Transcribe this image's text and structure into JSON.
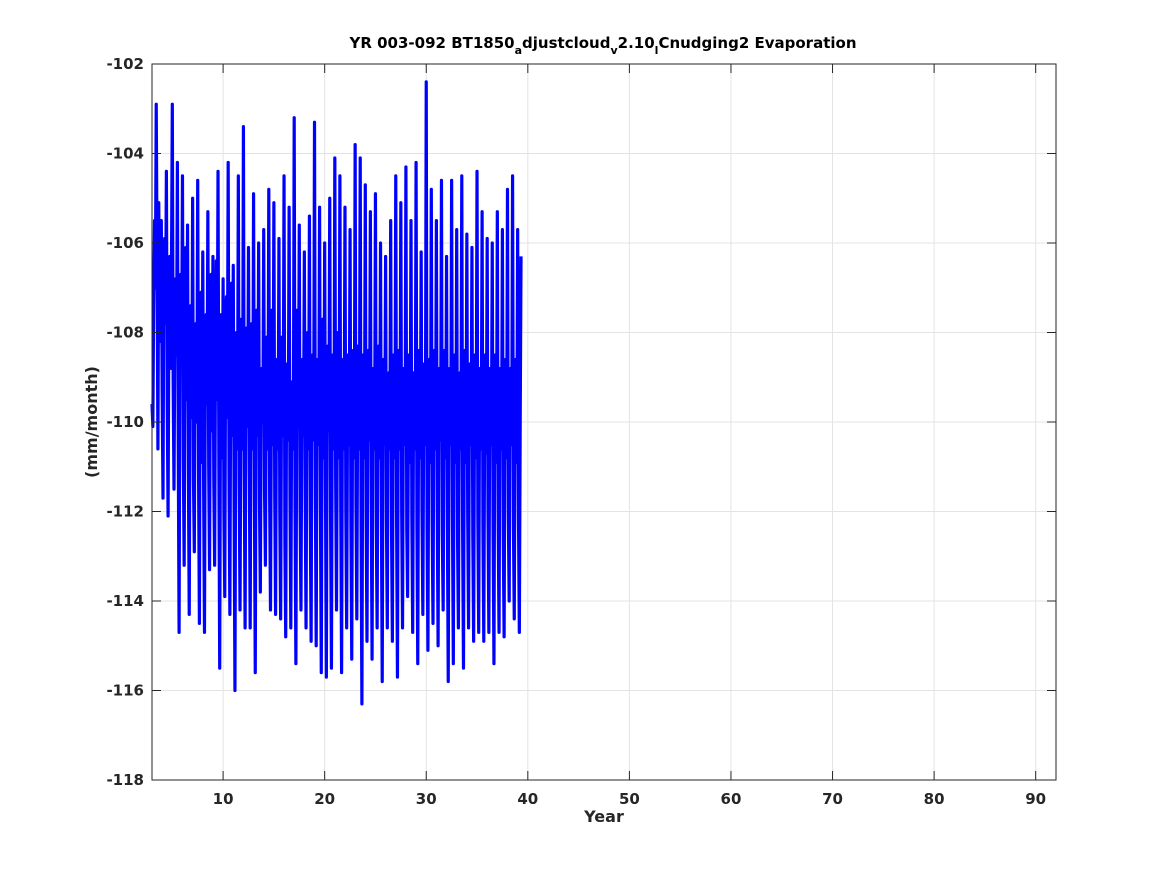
{
  "chart_data": {
    "type": "line",
    "title": {
      "part1": "YR 003-092 BT1850",
      "sub1": "a",
      "part2": "djustcloud",
      "sub2": "v",
      "part3": "2.10",
      "sub3": "l",
      "part4": "Cnudging2 Evaporation"
    },
    "xlabel": "Year",
    "ylabel": "(mm/month)",
    "xlim": [
      3,
      92
    ],
    "ylim": [
      -118,
      -102
    ],
    "xticks": [
      10,
      20,
      30,
      40,
      50,
      60,
      70,
      80,
      90
    ],
    "yticks": [
      -118,
      -116,
      -114,
      -112,
      -110,
      -108,
      -106,
      -104,
      -102
    ],
    "grid": true,
    "line_color": "#0000ff",
    "x_start": 3.0,
    "x_step": 0.08333,
    "series": [
      {
        "values": [
          -109.6,
          -110.1,
          -107.3,
          -105.5,
          -107.0,
          -102.9,
          -106.5,
          -110.6,
          -105.1,
          -108.2,
          -107.0,
          -105.5,
          -109.3,
          -111.7,
          -106.5,
          -105.9,
          -107.8,
          -104.4,
          -109.6,
          -112.1,
          -107.4,
          -106.3,
          -108.8,
          -106.6,
          -102.9,
          -109.1,
          -111.5,
          -107.9,
          -106.8,
          -108.5,
          -104.2,
          -110.4,
          -114.7,
          -108.0,
          -106.7,
          -108.7,
          -104.5,
          -110.8,
          -113.2,
          -107.9,
          -106.1,
          -109.5,
          -105.6,
          -111.1,
          -114.3,
          -108.5,
          -107.4,
          -109.9,
          -105.0,
          -111.3,
          -112.9,
          -108.0,
          -107.8,
          -110.0,
          -104.6,
          -111.1,
          -114.5,
          -107.8,
          -107.1,
          -110.9,
          -106.2,
          -111.4,
          -114.7,
          -108.7,
          -107.6,
          -109.6,
          -105.3,
          -111.0,
          -113.3,
          -108.2,
          -106.7,
          -110.2,
          -106.3,
          -111.3,
          -113.2,
          -108.5,
          -106.4,
          -109.5,
          -104.4,
          -111.0,
          -115.5,
          -108.7,
          -107.6,
          -110.8,
          -106.8,
          -112.1,
          -113.9,
          -107.9,
          -107.2,
          -109.9,
          -104.2,
          -111.2,
          -114.3,
          -108.7,
          -106.9,
          -110.3,
          -106.5,
          -111.7,
          -116.0,
          -109.1,
          -108.0,
          -110.6,
          -104.5,
          -111.3,
          -114.2,
          -109.6,
          -107.7,
          -110.6,
          -103.4,
          -111.1,
          -114.6,
          -108.9,
          -107.9,
          -110.1,
          -106.1,
          -111.1,
          -114.6,
          -108.9,
          -107.8,
          -110.6,
          -104.9,
          -111.7,
          -115.6,
          -109.1,
          -107.5,
          -110.3,
          -106.0,
          -111.8,
          -113.8,
          -109.5,
          -108.8,
          -110.0,
          -105.7,
          -111.6,
          -113.2,
          -109.2,
          -108.1,
          -110.6,
          -104.8,
          -111.7,
          -114.2,
          -109.7,
          -107.5,
          -110.5,
          -105.1,
          -111.6,
          -114.3,
          -109.3,
          -108.6,
          -110.6,
          -105.9,
          -112.1,
          -114.4,
          -109.3,
          -108.1,
          -110.3,
          -104.5,
          -112.7,
          -114.8,
          -109.2,
          -108.7,
          -110.4,
          -105.2,
          -111.6,
          -114.6,
          -109.6,
          -109.1,
          -110.6,
          -103.2,
          -111.9,
          -115.4,
          -109.4,
          -107.5,
          -110.1,
          -105.6,
          -112.0,
          -114.2,
          -109.8,
          -108.6,
          -110.3,
          -106.2,
          -111.7,
          -114.6,
          -109.4,
          -108.0,
          -110.6,
          -105.4,
          -112.1,
          -114.9,
          -108.9,
          -108.5,
          -110.4,
          -103.3,
          -111.6,
          -115.0,
          -109.3,
          -108.6,
          -110.5,
          -105.2,
          -111.9,
          -115.6,
          -109.7,
          -107.7,
          -110.8,
          -106.0,
          -111.6,
          -115.7,
          -109.2,
          -108.3,
          -110.2,
          -105.0,
          -112.2,
          -115.5,
          -109.4,
          -108.5,
          -110.6,
          -104.1,
          -111.3,
          -114.2,
          -109.6,
          -108.0,
          -110.8,
          -104.5,
          -111.9,
          -115.6,
          -109.3,
          -108.6,
          -110.6,
          -105.2,
          -112.0,
          -114.6,
          -109.7,
          -108.5,
          -110.5,
          -105.7,
          -112.3,
          -115.3,
          -109.4,
          -108.4,
          -110.8,
          -103.8,
          -111.8,
          -114.4,
          -109.2,
          -108.3,
          -110.6,
          -104.1,
          -112.3,
          -116.3,
          -109.5,
          -108.5,
          -110.8,
          -104.7,
          -112.1,
          -114.9,
          -109.6,
          -108.4,
          -110.4,
          -105.3,
          -111.8,
          -115.3,
          -109.4,
          -108.8,
          -110.6,
          -104.9,
          -112.3,
          -114.6,
          -109.3,
          -108.3,
          -110.8,
          -106.0,
          -112.0,
          -115.8,
          -109.7,
          -108.6,
          -110.5,
          -106.3,
          -112.2,
          -114.6,
          -109.3,
          -108.9,
          -110.6,
          -105.5,
          -112.4,
          -114.9,
          -109.6,
          -108.5,
          -110.8,
          -104.5,
          -112.2,
          -115.7,
          -109.3,
          -108.4,
          -110.6,
          -105.1,
          -112.0,
          -114.6,
          -109.4,
          -108.8,
          -110.5,
          -104.3,
          -112.4,
          -113.9,
          -109.7,
          -108.5,
          -110.9,
          -105.5,
          -112.1,
          -114.7,
          -109.5,
          -108.9,
          -110.6,
          -104.2,
          -112.3,
          -115.4,
          -109.4,
          -108.4,
          -110.8,
          -106.2,
          -112.0,
          -114.3,
          -109.7,
          -108.7,
          -110.5,
          -102.4,
          -112.4,
          -115.1,
          -109.5,
          -108.6,
          -110.9,
          -104.8,
          -112.2,
          -114.5,
          -109.3,
          -108.4,
          -110.6,
          -105.5,
          -112.0,
          -115.0,
          -109.6,
          -108.8,
          -110.4,
          -104.6,
          -112.5,
          -114.2,
          -109.7,
          -108.4,
          -110.8,
          -106.3,
          -112.3,
          -115.8,
          -109.6,
          -108.8,
          -110.5,
          -104.6,
          -112.1,
          -115.4,
          -109.3,
          -108.5,
          -110.9,
          -105.7,
          -112.6,
          -114.6,
          -109.8,
          -108.9,
          -110.6,
          -104.5,
          -112.4,
          -115.5,
          -109.5,
          -108.4,
          -110.9,
          -105.8,
          -112.1,
          -114.6,
          -109.4,
          -108.7,
          -110.5,
          -106.1,
          -112.5,
          -114.9,
          -109.7,
          -108.5,
          -110.8,
          -104.4,
          -112.2,
          -114.7,
          -109.3,
          -108.8,
          -110.6,
          -105.3,
          -112.4,
          -114.9,
          -109.8,
          -108.5,
          -110.7,
          -105.9,
          -112.1,
          -114.7,
          -109.5,
          -108.8,
          -110.5,
          -106.0,
          -112.4,
          -115.4,
          -109.4,
          -108.5,
          -110.9,
          -105.3,
          -112.2,
          -114.7,
          -109.7,
          -108.8,
          -110.6,
          -105.7,
          -112.5,
          -114.8,
          -109.5,
          -108.6,
          -110.8,
          -104.8,
          -112.1,
          -114.0,
          -109.4,
          -108.8,
          -110.5,
          -104.5,
          -112.3,
          -114.4,
          -109.7,
          -108.6,
          -110.9,
          -105.7,
          -112.1,
          -114.7,
          -110.0,
          -106.3
        ]
      }
    ]
  }
}
